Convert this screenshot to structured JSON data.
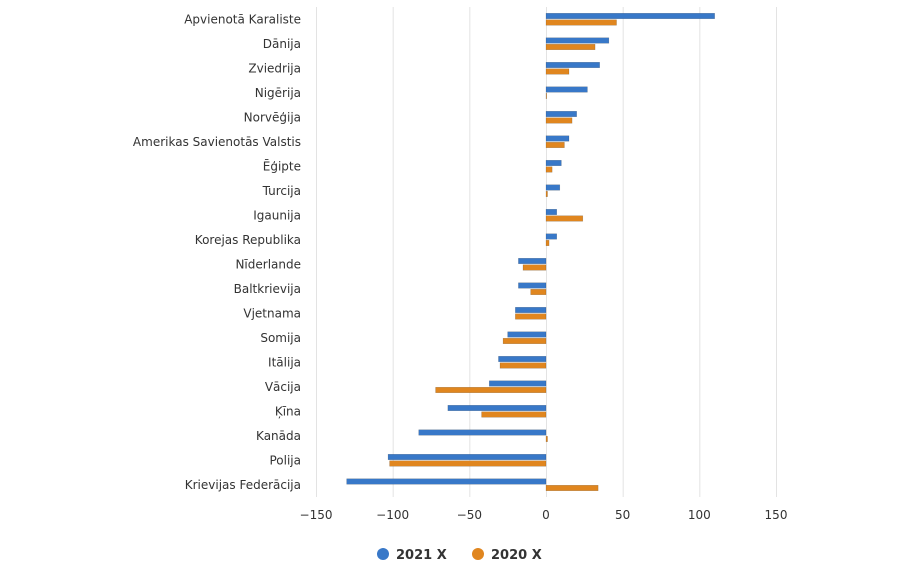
{
  "chart_data": {
    "type": "bar",
    "orientation": "horizontal",
    "categories": [
      "Apvienotā Karaliste",
      "Dānija",
      "Zviedrija",
      "Nigērija",
      "Norvēģija",
      "Amerikas Savienotās Valstis",
      "Ēģipte",
      "Turcija",
      "Igaunija",
      "Korejas Republika",
      "Nīderlande",
      "Baltkrievija",
      "Vjetnama",
      "Somija",
      "Itālija",
      "Vācija",
      "Ķīna",
      "Kanāda",
      "Polija",
      "Krievijas Federācija"
    ],
    "series": [
      {
        "name": "2021 X",
        "color": "#3878c8",
        "values": [
          110,
          41,
          35,
          27,
          20,
          15,
          10,
          9,
          7,
          7,
          -18,
          -18,
          -20,
          -25,
          -31,
          -37,
          -64,
          -83,
          -103,
          -130
        ]
      },
      {
        "name": "2020 X",
        "color": "#e0861f",
        "values": [
          46,
          32,
          15,
          0,
          17,
          12,
          4,
          1,
          24,
          2,
          -15,
          -10,
          -20,
          -28,
          -30,
          -72,
          -42,
          1,
          -102,
          34
        ]
      }
    ],
    "xlim": [
      -150,
      150
    ],
    "xticks": [
      -150,
      -100,
      -50,
      0,
      50,
      100,
      150
    ],
    "tick_labels": [
      "−150",
      "−100",
      "−50",
      "0",
      "50",
      "100",
      "150"
    ],
    "grid": true,
    "legend_position": "bottom-center"
  }
}
